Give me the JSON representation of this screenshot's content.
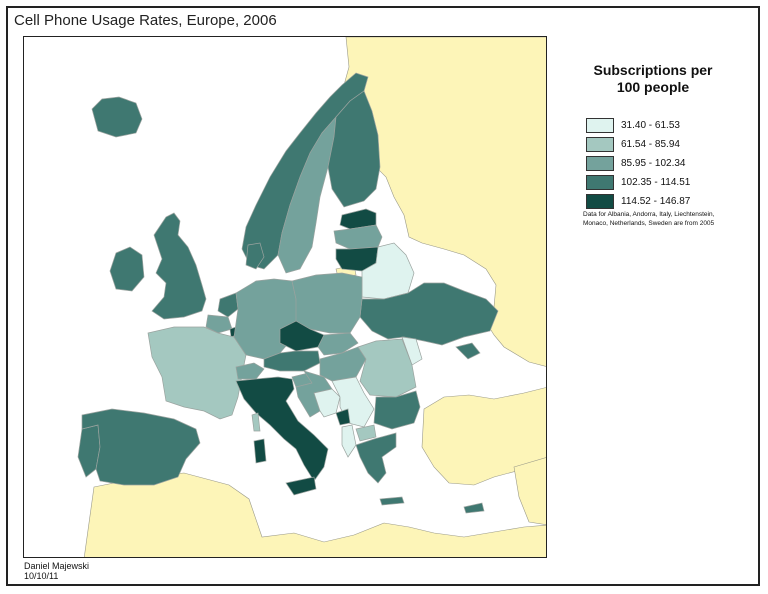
{
  "title": "Cell Phone Usage Rates, Europe, 2006",
  "legend": {
    "title_line1": "Subscriptions per",
    "title_line2": "100 people",
    "items": [
      {
        "label": "31.40 - 61.53",
        "color": "#dff3ef"
      },
      {
        "label": "61.54 - 85.94",
        "color": "#a4c8c0"
      },
      {
        "label": "85.95 - 102.34",
        "color": "#74a29c"
      },
      {
        "label": "102.35 - 114.51",
        "color": "#3f7871"
      },
      {
        "label": "114.52 - 146.87",
        "color": "#124b44"
      }
    ]
  },
  "note": "Data for Albania, Andorra, Italy, Liechtenstein, Monaco, Netherlands, Sweden are from 2005",
  "credit_name": "Daniel Majewski",
  "credit_date": "10/10/11",
  "colors": {
    "land_outside": "#fdf5b8",
    "no_data": "#ffffff",
    "class1": "#dff3ef",
    "class2": "#a4c8c0",
    "class3": "#74a29c",
    "class4": "#3f7871",
    "class5": "#124b44"
  },
  "map": {
    "countries": [
      {
        "name": "Iceland",
        "class": 4
      },
      {
        "name": "Norway",
        "class": 4
      },
      {
        "name": "Sweden",
        "class": 3
      },
      {
        "name": "Finland",
        "class": 4
      },
      {
        "name": "Estonia",
        "class": 5
      },
      {
        "name": "Latvia",
        "class": 3
      },
      {
        "name": "Lithuania",
        "class": 5
      },
      {
        "name": "Belarus",
        "class": 1
      },
      {
        "name": "Ukraine",
        "class": 4
      },
      {
        "name": "Moldova",
        "class": 1
      },
      {
        "name": "United Kingdom",
        "class": 4
      },
      {
        "name": "Ireland",
        "class": 4
      },
      {
        "name": "Denmark",
        "class": 4
      },
      {
        "name": "Netherlands",
        "class": 4
      },
      {
        "name": "Belgium",
        "class": 3
      },
      {
        "name": "Luxembourg",
        "class": 5
      },
      {
        "name": "France",
        "class": 2
      },
      {
        "name": "Germany",
        "class": 3
      },
      {
        "name": "Poland",
        "class": 3
      },
      {
        "name": "Czech Republic",
        "class": 5
      },
      {
        "name": "Slovakia",
        "class": 3
      },
      {
        "name": "Austria",
        "class": 4
      },
      {
        "name": "Switzerland",
        "class": 3
      },
      {
        "name": "Hungary",
        "class": 3
      },
      {
        "name": "Romania",
        "class": 2
      },
      {
        "name": "Bulgaria",
        "class": 4
      },
      {
        "name": "Spain",
        "class": 4
      },
      {
        "name": "Portugal",
        "class": 4
      },
      {
        "name": "Italy",
        "class": 5
      },
      {
        "name": "Slovenia",
        "class": 3
      },
      {
        "name": "Croatia",
        "class": 3
      },
      {
        "name": "Bosnia and Herzegovina",
        "class": 1
      },
      {
        "name": "Serbia",
        "class": 1
      },
      {
        "name": "Montenegro",
        "class": 5
      },
      {
        "name": "Albania",
        "class": 1
      },
      {
        "name": "Macedonia",
        "class": 2
      },
      {
        "name": "Greece",
        "class": 4
      },
      {
        "name": "Cyprus",
        "class": 4
      }
    ]
  }
}
